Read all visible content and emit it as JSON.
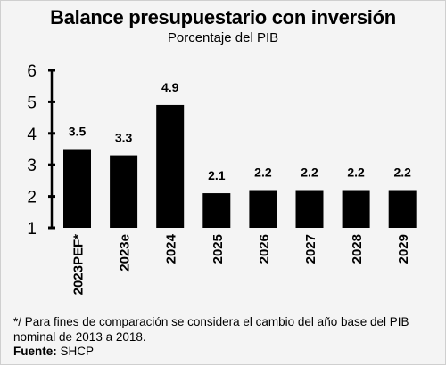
{
  "chart_data": {
    "type": "bar",
    "title": "Balance presupuestario con inversión",
    "subtitle": "Porcentaje del PIB",
    "categories": [
      "2023PEF*",
      "2023e",
      "2024",
      "2025",
      "2026",
      "2027",
      "2028",
      "2029"
    ],
    "values": [
      3.5,
      3.3,
      4.9,
      2.1,
      2.2,
      2.2,
      2.2,
      2.2
    ],
    "data_labels": [
      "3.5",
      "3.3",
      "4.9",
      "2.1",
      "2.2",
      "2.2",
      "2.2",
      "2.2"
    ],
    "ylim": [
      1,
      6
    ],
    "yticks": [
      "1",
      "2",
      "3",
      "4",
      "5",
      "6"
    ],
    "xlabel": "",
    "ylabel": "",
    "grid": false,
    "bar_color": "#000000"
  },
  "footnote": "*/ Para fines de comparación se considera el cambio del año base del PIB nominal de 2013 a 2018.",
  "source_label": "Fuente:",
  "source_value": "SHCP"
}
